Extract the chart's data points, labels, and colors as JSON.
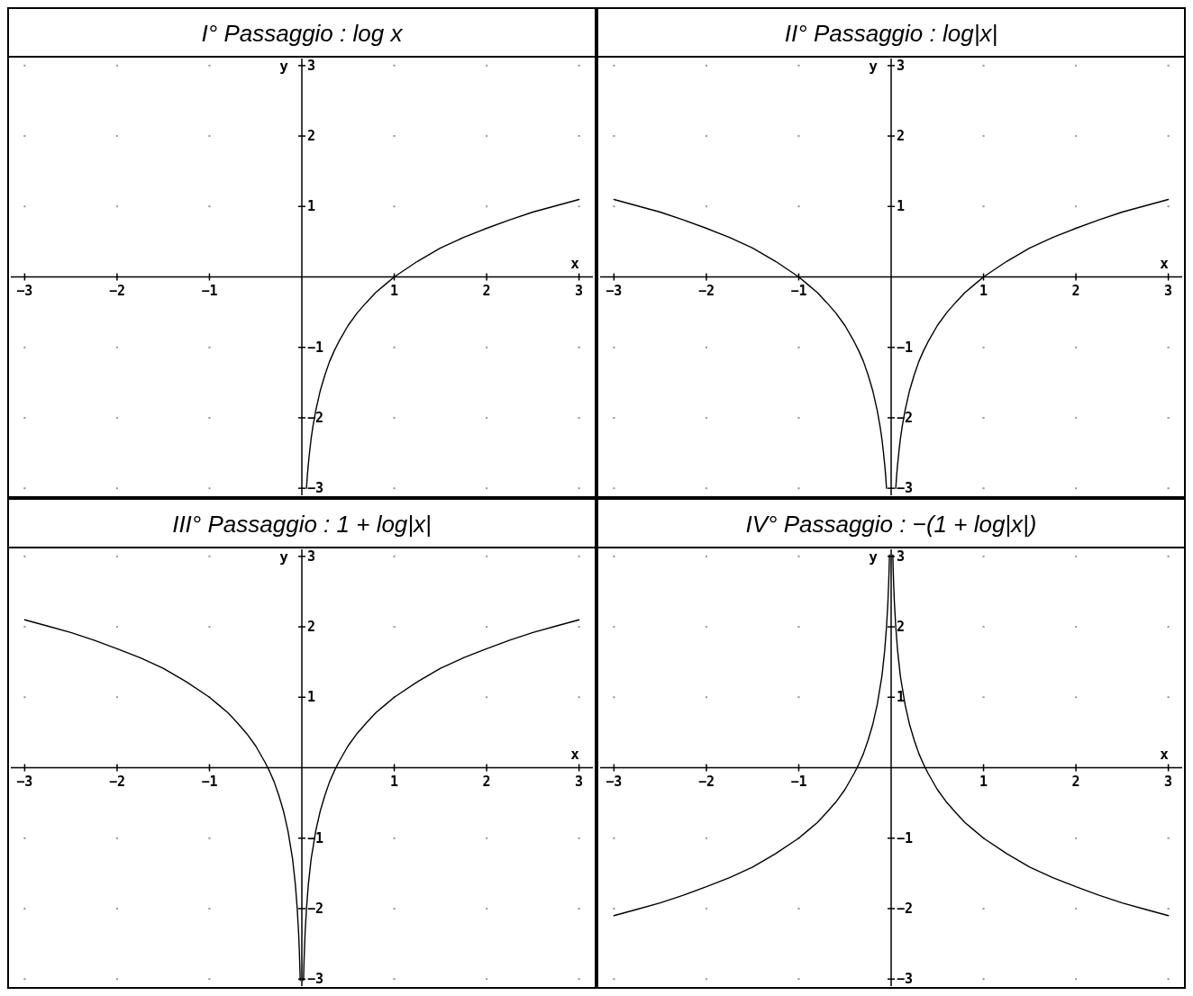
{
  "chart_data": [
    {
      "type": "line",
      "title": "I° Passaggio : log x",
      "xlabel": "x",
      "ylabel": "y",
      "xlim": [
        -3.15,
        3.15
      ],
      "ylim": [
        -3.1,
        3.1
      ],
      "xticks": [
        -3,
        -2,
        -1,
        1,
        2,
        3
      ],
      "yticks": [
        -3,
        -2,
        -1,
        1,
        2,
        3
      ],
      "grid": true,
      "series": [
        {
          "color": "#000000",
          "x": [
            0.05,
            0.06,
            0.07,
            0.085,
            0.1,
            0.12,
            0.15,
            0.2,
            0.25,
            0.3,
            0.35,
            0.4,
            0.5,
            0.6,
            0.7,
            0.8,
            0.9,
            1,
            1.25,
            1.5,
            1.75,
            2,
            2.25,
            2.5,
            2.75,
            3
          ],
          "values": [
            -3.0,
            -2.81,
            -2.66,
            -2.47,
            -2.3,
            -2.12,
            -1.9,
            -1.61,
            -1.39,
            -1.2,
            -1.05,
            -0.92,
            -0.69,
            -0.51,
            -0.36,
            -0.22,
            -0.11,
            0,
            0.22,
            0.41,
            0.56,
            0.69,
            0.81,
            0.92,
            1.01,
            1.1
          ]
        }
      ]
    },
    {
      "type": "line",
      "title": "II° Passaggio : log|x|",
      "xlabel": "x",
      "ylabel": "y",
      "xlim": [
        -3.15,
        3.15
      ],
      "ylim": [
        -3.1,
        3.1
      ],
      "xticks": [
        -3,
        -2,
        -1,
        1,
        2,
        3
      ],
      "yticks": [
        -3,
        -2,
        -1,
        1,
        2,
        3
      ],
      "grid": true,
      "series": [
        {
          "color": "#000000",
          "x": [
            -3,
            -2.75,
            -2.5,
            -2.25,
            -2,
            -1.75,
            -1.5,
            -1.25,
            -1,
            -0.9,
            -0.8,
            -0.7,
            -0.6,
            -0.5,
            -0.4,
            -0.35,
            -0.3,
            -0.25,
            -0.2,
            -0.15,
            -0.12,
            -0.1,
            -0.085,
            -0.07,
            -0.06,
            -0.05,
            0,
            0.05,
            0.06,
            0.07,
            0.085,
            0.1,
            0.12,
            0.15,
            0.2,
            0.25,
            0.3,
            0.35,
            0.4,
            0.5,
            0.6,
            0.7,
            0.8,
            0.9,
            1,
            1.25,
            1.5,
            1.75,
            2,
            2.25,
            2.5,
            2.75,
            3
          ],
          "values": [
            1.1,
            1.01,
            0.92,
            0.81,
            0.69,
            0.56,
            0.41,
            0.22,
            0,
            -0.11,
            -0.22,
            -0.36,
            -0.51,
            -0.69,
            -0.92,
            -1.05,
            -1.2,
            -1.39,
            -1.61,
            -1.9,
            -2.12,
            -2.3,
            -2.47,
            -2.66,
            -2.81,
            -3.0,
            null,
            -3.0,
            -2.81,
            -2.66,
            -2.47,
            -2.3,
            -2.12,
            -1.9,
            -1.61,
            -1.39,
            -1.2,
            -1.05,
            -0.92,
            -0.69,
            -0.51,
            -0.36,
            -0.22,
            -0.11,
            0,
            0.22,
            0.41,
            0.56,
            0.69,
            0.81,
            0.92,
            1.01,
            1.1
          ]
        }
      ]
    },
    {
      "type": "line",
      "title": "III° Passaggio : 1 + log|x|",
      "xlabel": "x",
      "ylabel": "y",
      "xlim": [
        -3.15,
        3.15
      ],
      "ylim": [
        -3.1,
        3.1
      ],
      "xticks": [
        -3,
        -2,
        -1,
        1,
        2,
        3
      ],
      "yticks": [
        -3,
        -2,
        -1,
        1,
        2,
        3
      ],
      "grid": true,
      "series": [
        {
          "color": "#000000",
          "x": [
            -3,
            -2.75,
            -2.5,
            -2.25,
            -2,
            -1.75,
            -1.5,
            -1.25,
            -1,
            -0.9,
            -0.8,
            -0.7,
            -0.6,
            -0.5,
            -0.4,
            -0.35,
            -0.3,
            -0.25,
            -0.2,
            -0.15,
            -0.1,
            -0.07,
            -0.05,
            -0.035,
            -0.027,
            -0.022,
            -0.018,
            0,
            0.018,
            0.022,
            0.027,
            0.035,
            0.05,
            0.07,
            0.1,
            0.15,
            0.2,
            0.25,
            0.3,
            0.35,
            0.4,
            0.5,
            0.6,
            0.7,
            0.8,
            0.9,
            1,
            1.25,
            1.5,
            1.75,
            2,
            2.25,
            2.5,
            2.75,
            3
          ],
          "values": [
            2.1,
            2.01,
            1.92,
            1.81,
            1.69,
            1.56,
            1.41,
            1.22,
            1.0,
            0.89,
            0.78,
            0.64,
            0.49,
            0.31,
            0.08,
            -0.05,
            -0.2,
            -0.39,
            -0.61,
            -0.9,
            -1.3,
            -1.66,
            -2.0,
            -2.35,
            -2.61,
            -2.82,
            -3.02,
            null,
            -3.02,
            -2.82,
            -2.61,
            -2.35,
            -2.0,
            -1.66,
            -1.3,
            -0.9,
            -0.61,
            -0.39,
            -0.2,
            -0.05,
            0.08,
            0.31,
            0.49,
            0.64,
            0.78,
            0.89,
            1.0,
            1.22,
            1.41,
            1.56,
            1.69,
            1.81,
            1.92,
            2.01,
            2.1
          ]
        }
      ]
    },
    {
      "type": "line",
      "title": "IV° Passaggio : −(1 + log|x|)",
      "xlabel": "x",
      "ylabel": "y",
      "xlim": [
        -3.15,
        3.15
      ],
      "ylim": [
        -3.1,
        3.1
      ],
      "xticks": [
        -3,
        -2,
        -1,
        1,
        2,
        3
      ],
      "yticks": [
        -3,
        -2,
        -1,
        1,
        2,
        3
      ],
      "grid": true,
      "series": [
        {
          "color": "#000000",
          "x": [
            -3,
            -2.75,
            -2.5,
            -2.25,
            -2,
            -1.75,
            -1.5,
            -1.25,
            -1,
            -0.9,
            -0.8,
            -0.7,
            -0.6,
            -0.5,
            -0.4,
            -0.35,
            -0.3,
            -0.25,
            -0.2,
            -0.15,
            -0.1,
            -0.07,
            -0.05,
            -0.035,
            -0.027,
            -0.022,
            -0.018,
            0,
            0.018,
            0.022,
            0.027,
            0.035,
            0.05,
            0.07,
            0.1,
            0.15,
            0.2,
            0.25,
            0.3,
            0.35,
            0.4,
            0.5,
            0.6,
            0.7,
            0.8,
            0.9,
            1,
            1.25,
            1.5,
            1.75,
            2,
            2.25,
            2.5,
            2.75,
            3
          ],
          "values": [
            -2.1,
            -2.01,
            -1.92,
            -1.81,
            -1.69,
            -1.56,
            -1.41,
            -1.22,
            -1.0,
            -0.89,
            -0.78,
            -0.64,
            -0.49,
            -0.31,
            -0.08,
            0.05,
            0.2,
            0.39,
            0.61,
            0.9,
            1.3,
            1.66,
            2.0,
            2.35,
            2.61,
            2.82,
            3.02,
            null,
            3.02,
            2.82,
            2.61,
            2.35,
            2.0,
            1.66,
            1.3,
            0.9,
            0.61,
            0.39,
            0.2,
            0.05,
            -0.08,
            -0.31,
            -0.49,
            -0.64,
            -0.78,
            -0.89,
            -1.0,
            -1.22,
            -1.41,
            -1.56,
            -1.69,
            -1.81,
            -1.92,
            -2.01,
            -2.1
          ]
        }
      ]
    }
  ]
}
